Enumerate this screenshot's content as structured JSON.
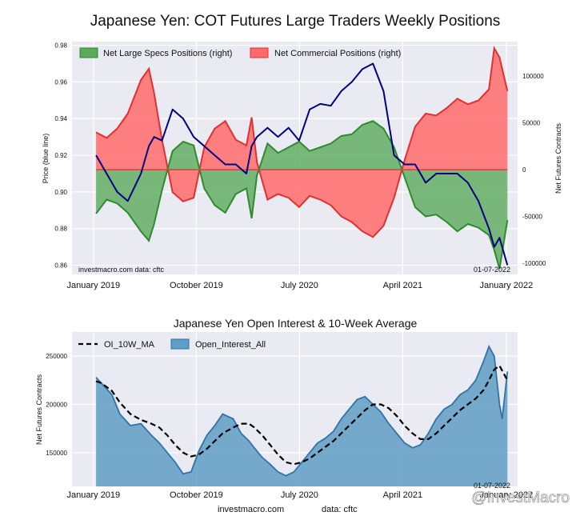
{
  "figure": {
    "title": "Japanese Yen: COT Futures Large Traders Weekly Positions",
    "footer_source": "investmacro.com",
    "footer_data": "data: cftc",
    "watermark": "@InvestMacro"
  },
  "colors": {
    "panel_bg": "#eaeaf2",
    "specs_fill": "#5aaa5a",
    "specs_line": "#2e8b2e",
    "comm_fill": "#ff6b6b",
    "comm_line": "#e03030",
    "price_line": "#00007f",
    "oi_fill": "#5f9ec6",
    "oi_line": "#2f74a6",
    "ma_line": "#000000"
  },
  "chart_data": [
    {
      "type": "line",
      "title": "Japanese Yen: COT Futures Large Traders Weekly Positions",
      "ylabel": "Price (blue line)",
      "y2label": "Net Futures Contracts",
      "xlim": [
        "2018-11-05",
        "2022-01-31"
      ],
      "ylim": [
        0.855,
        0.982
      ],
      "y2lim": [
        -112000,
        137000
      ],
      "yticks": [
        0.86,
        0.88,
        0.9,
        0.92,
        0.94,
        0.96,
        0.98
      ],
      "ytick_labels": [
        "0.86",
        "0.88",
        "0.90",
        "0.92",
        "0.94",
        "0.96",
        "0.98"
      ],
      "y2ticks": [
        -100000,
        -50000,
        0,
        50000,
        100000
      ],
      "y2tick_labels": [
        "-100000",
        "-50000",
        "0",
        "50000",
        "100000"
      ],
      "xticks": [
        "2019-01-01",
        "2019-10-01",
        "2020-07-01",
        "2021-04-01",
        "2022-01-01"
      ],
      "xtick_labels": [
        "January 2019",
        "October 2019",
        "July 2020",
        "April 2021",
        "January 2022"
      ],
      "legend": [
        "Net Large Specs Positions (right)",
        "Net Commercial Positions (right)"
      ],
      "legend_position": "top-left",
      "annotation_left": "investmacro.com    data: cftc",
      "annotation_right": "01-07-2022",
      "grid": true,
      "series": [
        {
          "name": "Net Large Specs Positions (right)",
          "axis": "right",
          "x": [
            "2019-01-08",
            "2019-02-05",
            "2019-03-05",
            "2019-04-02",
            "2019-05-07",
            "2019-05-28",
            "2019-06-11",
            "2019-07-02",
            "2019-07-30",
            "2019-08-27",
            "2019-09-24",
            "2019-10-22",
            "2019-11-19",
            "2019-12-17",
            "2020-01-14",
            "2020-02-11",
            "2020-02-25",
            "2020-03-10",
            "2020-04-07",
            "2020-05-05",
            "2020-06-02",
            "2020-06-30",
            "2020-07-28",
            "2020-08-25",
            "2020-09-22",
            "2020-10-20",
            "2020-11-17",
            "2020-12-15",
            "2021-01-12",
            "2021-02-09",
            "2021-03-09",
            "2021-04-06",
            "2021-05-04",
            "2021-06-01",
            "2021-06-29",
            "2021-07-27",
            "2021-08-24",
            "2021-09-21",
            "2021-10-19",
            "2021-11-16",
            "2021-11-30",
            "2021-12-14",
            "2022-01-04"
          ],
          "y": [
            -47000,
            -32000,
            -36000,
            -46000,
            -66000,
            -76000,
            -58000,
            -22000,
            20000,
            30000,
            26000,
            -20000,
            -38000,
            -46000,
            -26000,
            -20000,
            -52000,
            -6000,
            28000,
            18000,
            24000,
            30000,
            20000,
            24000,
            28000,
            36000,
            38000,
            48000,
            52000,
            44000,
            24000,
            -8000,
            -40000,
            -50000,
            -48000,
            -56000,
            -66000,
            -58000,
            -62000,
            -70000,
            -86000,
            -106000,
            -54000
          ]
        },
        {
          "name": "Net Commercial Positions (right)",
          "axis": "right",
          "x": [
            "2019-01-08",
            "2019-02-05",
            "2019-03-05",
            "2019-04-02",
            "2019-05-07",
            "2019-05-28",
            "2019-06-11",
            "2019-07-02",
            "2019-07-30",
            "2019-08-27",
            "2019-09-24",
            "2019-10-22",
            "2019-11-19",
            "2019-12-17",
            "2020-01-14",
            "2020-02-11",
            "2020-02-25",
            "2020-03-10",
            "2020-04-07",
            "2020-05-05",
            "2020-06-02",
            "2020-06-30",
            "2020-07-28",
            "2020-08-25",
            "2020-09-22",
            "2020-10-20",
            "2020-11-17",
            "2020-12-15",
            "2021-01-12",
            "2021-02-09",
            "2021-03-09",
            "2021-04-06",
            "2021-05-04",
            "2021-06-01",
            "2021-06-29",
            "2021-07-27",
            "2021-08-24",
            "2021-09-21",
            "2021-10-19",
            "2021-11-16",
            "2021-11-30",
            "2021-12-14",
            "2022-01-04"
          ],
          "y": [
            40000,
            34000,
            44000,
            60000,
            96000,
            108000,
            82000,
            32000,
            -24000,
            -34000,
            -30000,
            24000,
            44000,
            52000,
            32000,
            26000,
            56000,
            8000,
            -32000,
            -26000,
            -30000,
            -40000,
            -28000,
            -32000,
            -38000,
            -50000,
            -56000,
            -66000,
            -72000,
            -60000,
            -30000,
            10000,
            46000,
            60000,
            58000,
            66000,
            76000,
            70000,
            74000,
            86000,
            130000,
            120000,
            84000
          ]
        },
        {
          "name": "Price (blue line)",
          "axis": "left",
          "x": [
            "2019-01-08",
            "2019-02-05",
            "2019-03-05",
            "2019-04-02",
            "2019-05-07",
            "2019-05-28",
            "2019-06-11",
            "2019-07-02",
            "2019-07-30",
            "2019-08-27",
            "2019-09-24",
            "2019-10-22",
            "2019-11-19",
            "2019-12-17",
            "2020-01-14",
            "2020-02-11",
            "2020-02-25",
            "2020-03-10",
            "2020-04-07",
            "2020-05-05",
            "2020-06-02",
            "2020-06-30",
            "2020-07-28",
            "2020-08-25",
            "2020-09-22",
            "2020-10-20",
            "2020-11-17",
            "2020-12-15",
            "2021-01-12",
            "2021-02-09",
            "2021-03-09",
            "2021-04-06",
            "2021-05-04",
            "2021-06-01",
            "2021-06-29",
            "2021-07-27",
            "2021-08-24",
            "2021-09-21",
            "2021-10-19",
            "2021-11-16",
            "2021-11-30",
            "2021-12-14",
            "2022-01-04"
          ],
          "y": [
            0.92,
            0.91,
            0.9,
            0.895,
            0.91,
            0.925,
            0.93,
            0.928,
            0.945,
            0.94,
            0.93,
            0.925,
            0.92,
            0.915,
            0.915,
            0.91,
            0.925,
            0.93,
            0.935,
            0.93,
            0.935,
            0.928,
            0.945,
            0.948,
            0.947,
            0.955,
            0.96,
            0.967,
            0.97,
            0.955,
            0.92,
            0.915,
            0.915,
            0.905,
            0.91,
            0.91,
            0.91,
            0.905,
            0.895,
            0.88,
            0.87,
            0.875,
            0.86
          ]
        }
      ]
    },
    {
      "type": "area",
      "title": "Japanese Yen Open Interest & 10-Week Average",
      "ylabel": "Net Futures Contracts",
      "xlim": [
        "2018-11-05",
        "2022-01-31"
      ],
      "ylim": [
        115000,
        275000
      ],
      "yticks": [
        150000,
        200000,
        250000
      ],
      "ytick_labels": [
        "150000",
        "200000",
        "250000"
      ],
      "xticks": [
        "2019-01-01",
        "2019-10-01",
        "2020-07-01",
        "2021-04-01",
        "2022-01-01"
      ],
      "xtick_labels": [
        "January 2019",
        "October 2019",
        "July 2020",
        "April 2021",
        "January 2022"
      ],
      "legend": [
        "OI_10W_MA",
        "Open_Interest_All"
      ],
      "legend_position": "top-left",
      "annotation_right": "01-07-2022",
      "grid": true,
      "series": [
        {
          "name": "Open_Interest_All",
          "x": [
            "2019-01-08",
            "2019-01-22",
            "2019-02-19",
            "2019-03-12",
            "2019-04-09",
            "2019-05-07",
            "2019-06-04",
            "2019-06-25",
            "2019-07-16",
            "2019-08-06",
            "2019-08-27",
            "2019-09-17",
            "2019-10-08",
            "2019-10-29",
            "2019-11-19",
            "2019-12-10",
            "2020-01-07",
            "2020-01-28",
            "2020-02-18",
            "2020-03-03",
            "2020-03-24",
            "2020-04-14",
            "2020-05-05",
            "2020-05-26",
            "2020-06-16",
            "2020-07-07",
            "2020-07-28",
            "2020-08-18",
            "2020-09-08",
            "2020-09-29",
            "2020-10-20",
            "2020-11-10",
            "2020-12-01",
            "2020-12-22",
            "2021-01-12",
            "2021-02-02",
            "2021-02-23",
            "2021-03-16",
            "2021-04-06",
            "2021-04-27",
            "2021-05-18",
            "2021-06-08",
            "2021-06-29",
            "2021-07-20",
            "2021-08-10",
            "2021-08-31",
            "2021-09-21",
            "2021-10-12",
            "2021-11-02",
            "2021-11-16",
            "2021-11-30",
            "2021-12-14",
            "2021-12-21",
            "2022-01-04"
          ],
          "y": [
            228000,
            222000,
            210000,
            190000,
            178000,
            180000,
            168000,
            160000,
            150000,
            140000,
            128000,
            130000,
            152000,
            168000,
            178000,
            190000,
            185000,
            170000,
            162000,
            155000,
            145000,
            138000,
            130000,
            126000,
            130000,
            140000,
            150000,
            160000,
            165000,
            172000,
            185000,
            195000,
            205000,
            208000,
            200000,
            192000,
            180000,
            170000,
            160000,
            155000,
            158000,
            170000,
            185000,
            195000,
            200000,
            210000,
            215000,
            225000,
            245000,
            260000,
            250000,
            200000,
            185000,
            234000
          ]
        },
        {
          "name": "OI_10W_MA",
          "x": [
            "2019-01-08",
            "2019-01-22",
            "2019-02-19",
            "2019-03-12",
            "2019-04-09",
            "2019-05-07",
            "2019-06-04",
            "2019-06-25",
            "2019-07-16",
            "2019-08-06",
            "2019-08-27",
            "2019-09-17",
            "2019-10-08",
            "2019-10-29",
            "2019-11-19",
            "2019-12-10",
            "2020-01-07",
            "2020-01-28",
            "2020-02-18",
            "2020-03-03",
            "2020-03-24",
            "2020-04-14",
            "2020-05-05",
            "2020-05-26",
            "2020-06-16",
            "2020-07-07",
            "2020-07-28",
            "2020-08-18",
            "2020-09-08",
            "2020-09-29",
            "2020-10-20",
            "2020-11-10",
            "2020-12-01",
            "2020-12-22",
            "2021-01-12",
            "2021-02-02",
            "2021-02-23",
            "2021-03-16",
            "2021-04-06",
            "2021-04-27",
            "2021-05-18",
            "2021-06-08",
            "2021-06-29",
            "2021-07-20",
            "2021-08-10",
            "2021-08-31",
            "2021-09-21",
            "2021-10-12",
            "2021-11-02",
            "2021-11-16",
            "2021-11-30",
            "2021-12-14",
            "2021-12-21",
            "2022-01-04"
          ],
          "y": [
            224000,
            222000,
            214000,
            202000,
            190000,
            184000,
            180000,
            176000,
            168000,
            158000,
            150000,
            146000,
            148000,
            154000,
            162000,
            170000,
            176000,
            180000,
            180000,
            176000,
            168000,
            158000,
            148000,
            140000,
            138000,
            140000,
            144000,
            150000,
            156000,
            162000,
            170000,
            178000,
            186000,
            194000,
            200000,
            200000,
            196000,
            188000,
            178000,
            170000,
            164000,
            164000,
            170000,
            178000,
            186000,
            194000,
            200000,
            206000,
            215000,
            225000,
            236000,
            240000,
            235000,
            225000
          ]
        }
      ]
    }
  ]
}
